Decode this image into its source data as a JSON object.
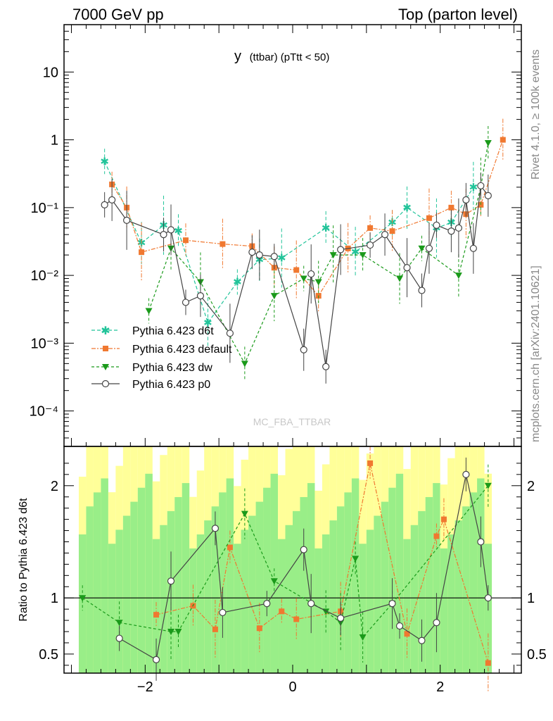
{
  "header": {
    "left": "7000 GeV pp",
    "right": "Top (parton level)"
  },
  "side_labels": {
    "rivet": "Rivet 4.1.0, ≥ 100k events",
    "mcplots": "mcplots.cern.ch [arXiv:2401.10621]"
  },
  "watermark": "MC_FBA_TTBAR",
  "colors": {
    "d6t": "#22c49a",
    "default": "#f07830",
    "dw": "#1a9a1a",
    "p0": "#444444",
    "band_yellow": "#ffff99",
    "band_green": "#99ee88"
  },
  "chart_data": [
    {
      "type": "line",
      "title_main": "y",
      "title_rest": "(ttbar)  (pTtt < 50)",
      "xlabel": "",
      "ylabel": "",
      "yscale": "log",
      "xlim": [
        -3.1,
        3.1
      ],
      "ylim": [
        3e-05,
        50
      ],
      "y_tick_labels": [
        "10",
        "1",
        "10⁻¹",
        "10⁻²",
        "10⁻³",
        "10⁻⁴"
      ],
      "y_tick_values": [
        10,
        1,
        0.1,
        0.01,
        0.001,
        0.0001
      ],
      "series": [
        {
          "name": "Pythia 6.423 d6t",
          "key": "d6t",
          "x": [
            -2.55,
            -2.05,
            -1.75,
            -1.55,
            -1.15,
            -0.75,
            -0.45,
            -0.15,
            0.45,
            0.85,
            1.35,
            1.55,
            1.95,
            2.15,
            2.45
          ],
          "y": [
            0.48,
            0.03,
            0.055,
            0.045,
            0.002,
            0.008,
            0.017,
            0.018,
            0.05,
            0.022,
            0.06,
            0.1,
            0.05,
            0.06,
            0.2
          ]
        },
        {
          "name": "Pythia 6.423 default",
          "key": "default",
          "x": [
            -2.45,
            -2.25,
            -2.05,
            -1.45,
            -0.95,
            -0.55,
            -0.25,
            0.05,
            0.35,
            0.75,
            1.05,
            1.35,
            1.85,
            2.15,
            2.35,
            2.55,
            2.85
          ],
          "y": [
            0.22,
            0.1,
            0.022,
            0.033,
            0.029,
            0.027,
            0.013,
            0.012,
            0.005,
            0.025,
            0.05,
            0.045,
            0.07,
            0.1,
            0.08,
            0.11,
            1.0
          ]
        },
        {
          "name": "Pythia 6.423 dw",
          "key": "dw",
          "x": [
            -1.95,
            -1.65,
            -1.25,
            -0.65,
            -0.25,
            0.15,
            0.35,
            0.55,
            0.95,
            1.45,
            1.75,
            2.25,
            2.55,
            2.65
          ],
          "y": [
            0.003,
            0.025,
            0.008,
            0.0005,
            0.005,
            0.009,
            0.008,
            0.02,
            0.02,
            0.009,
            0.025,
            0.01,
            0.2,
            0.9
          ]
        },
        {
          "name": "Pythia 6.423 p0",
          "key": "p0",
          "x": [
            -2.55,
            -2.45,
            -2.25,
            -1.75,
            -1.65,
            -1.45,
            -1.25,
            -0.85,
            -0.55,
            -0.45,
            -0.25,
            0.15,
            0.25,
            0.45,
            0.65,
            1.05,
            1.25,
            1.55,
            1.75,
            1.85,
            1.95,
            2.15,
            2.25,
            2.35,
            2.45,
            2.55,
            2.65
          ],
          "y": [
            0.11,
            0.13,
            0.065,
            0.04,
            0.047,
            0.004,
            0.005,
            0.0014,
            0.022,
            0.02,
            0.019,
            0.0008,
            0.0105,
            0.00045,
            0.024,
            0.028,
            0.04,
            0.013,
            0.006,
            0.025,
            0.055,
            0.045,
            0.05,
            0.13,
            0.025,
            0.21,
            0.15
          ]
        }
      ]
    },
    {
      "type": "line",
      "ylabel": "Ratio to Pythia 6.423 d6t",
      "xlabel": "",
      "xlim": [
        -3.1,
        3.1
      ],
      "ylim": [
        0.33,
        2.35
      ],
      "x_tick_labels": [
        "−2",
        "0",
        "2"
      ],
      "x_tick_values": [
        -2,
        0,
        2
      ],
      "y_tick_labels": [
        "2",
        "1",
        "0.5"
      ],
      "y_tick_values": [
        2,
        1,
        0.5
      ],
      "reference_line": 1,
      "series": [
        {
          "name": "Pythia 6.423 default",
          "key": "default",
          "x": [
            -1.85,
            -1.35,
            -1.05,
            -0.85,
            -0.45,
            -0.15,
            0.05,
            0.65,
            1.05,
            1.55,
            1.95,
            2.05,
            2.65
          ],
          "y": [
            0.85,
            0.93,
            0.72,
            1.45,
            0.73,
            0.88,
            0.81,
            0.88,
            2.2,
            0.68,
            1.55,
            1.7,
            0.42
          ]
        },
        {
          "name": "Pythia 6.423 dw",
          "key": "dw",
          "x": [
            -2.85,
            -2.35,
            -1.65,
            -1.55,
            -0.65,
            -0.25,
            0.45,
            0.65,
            0.85,
            0.95,
            1.35,
            2.65
          ],
          "y": [
            1.0,
            0.78,
            0.7,
            0.7,
            1.75,
            1.15,
            0.88,
            0.78,
            1.35,
            0.65,
            0.95,
            2.0
          ]
        },
        {
          "name": "Pythia 6.423 p0",
          "key": "p0",
          "x": [
            -2.35,
            -1.85,
            -1.65,
            -1.05,
            -0.95,
            -0.35,
            0.15,
            0.25,
            0.65,
            1.35,
            1.45,
            1.75,
            1.95,
            2.35,
            2.55,
            2.65
          ],
          "y": [
            0.64,
            0.45,
            1.15,
            1.62,
            0.87,
            0.95,
            1.43,
            0.95,
            0.82,
            0.95,
            0.75,
            0.62,
            0.78,
            2.1,
            1.5,
            1.0
          ]
        }
      ]
    }
  ]
}
